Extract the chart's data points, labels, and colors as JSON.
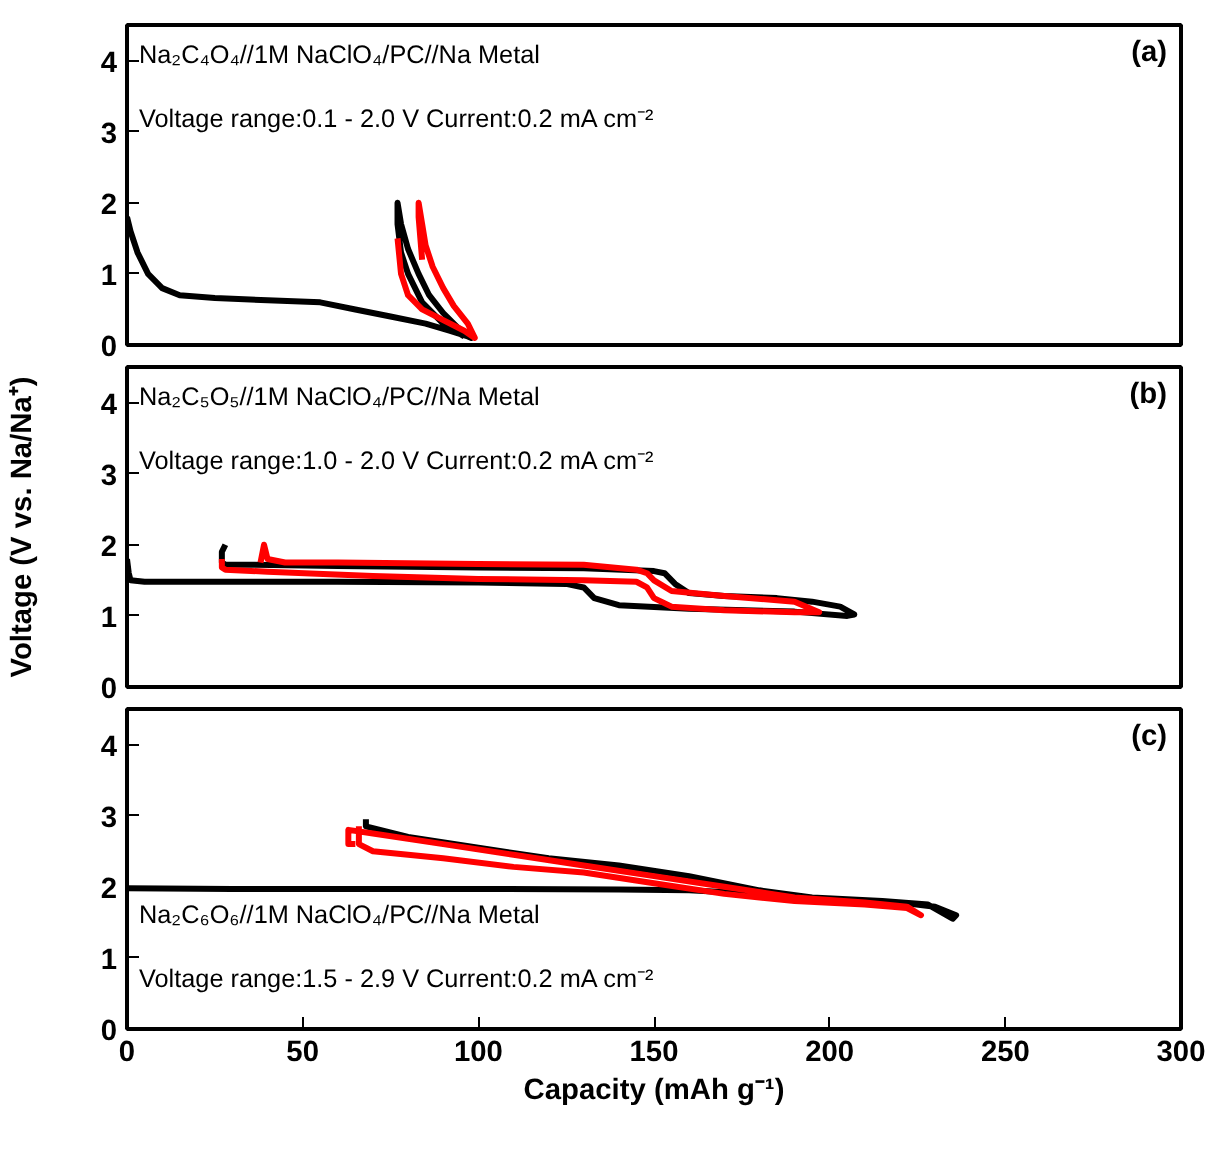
{
  "chart_data": [
    {
      "type": "line",
      "xlim": [
        0,
        300
      ],
      "ylim": [
        0,
        4.5
      ],
      "xticks": [
        0,
        50,
        100,
        150,
        200,
        250,
        300
      ],
      "yticks": [
        0,
        1,
        2,
        3,
        4
      ],
      "tick_labels": "y",
      "grid": false,
      "annotations": [
        "Na₂C₄O₄//1M NaClO₄/PC//Na Metal",
        "Voltage range:0.1 - 2.0 V Current:0.2 mA cm⁻²",
        "(a)"
      ],
      "series": [
        {
          "color": "#000000",
          "x": [
            0,
            1,
            3,
            6,
            10,
            15,
            25,
            40,
            55,
            65,
            75,
            85,
            92,
            97,
            98,
            94,
            90,
            86,
            83,
            80,
            78,
            77,
            77,
            78,
            80,
            84,
            90,
            96
          ],
          "values": [
            1.8,
            1.6,
            1.3,
            1.0,
            0.8,
            0.7,
            0.66,
            0.63,
            0.6,
            0.5,
            0.4,
            0.3,
            0.2,
            0.12,
            0.1,
            0.25,
            0.45,
            0.7,
            1.0,
            1.35,
            1.7,
            2.0,
            1.7,
            1.3,
            1.0,
            0.6,
            0.3,
            0.12
          ]
        },
        {
          "color": "#ff0000",
          "x": [
            77,
            78,
            80,
            84,
            90,
            96,
            99,
            97,
            93,
            90,
            87,
            85,
            84,
            83,
            83,
            83.5,
            84
          ],
          "values": [
            1.5,
            1.0,
            0.7,
            0.5,
            0.35,
            0.2,
            0.1,
            0.3,
            0.55,
            0.8,
            1.1,
            1.4,
            1.7,
            2.0,
            1.8,
            1.5,
            1.2
          ]
        }
      ]
    },
    {
      "type": "line",
      "xlim": [
        0,
        300
      ],
      "ylim": [
        0,
        4.5
      ],
      "xticks": [
        0,
        50,
        100,
        150,
        200,
        250,
        300
      ],
      "yticks": [
        0,
        1,
        2,
        3,
        4
      ],
      "tick_labels": "y",
      "grid": false,
      "ylabel": "Voltage (V vs. Na/Na⁺)",
      "annotations": [
        "Na₂C₅O₅//1M NaClO₄/PC//Na Metal",
        "Voltage range:1.0 - 2.0 V Current:0.2 mA cm⁻²",
        "(b)"
      ],
      "series": [
        {
          "color": "#000000",
          "x": [
            0,
            0.5,
            1,
            5,
            20,
            60,
            100,
            125,
            130,
            133,
            140,
            160,
            190,
            205,
            207,
            203,
            195,
            185,
            170,
            160,
            156,
            153,
            150,
            130,
            100,
            60,
            35,
            28,
            27,
            27,
            28
          ],
          "values": [
            1.8,
            1.6,
            1.5,
            1.48,
            1.48,
            1.48,
            1.47,
            1.45,
            1.4,
            1.25,
            1.15,
            1.1,
            1.06,
            1.0,
            1.02,
            1.13,
            1.2,
            1.25,
            1.28,
            1.32,
            1.45,
            1.6,
            1.63,
            1.67,
            1.68,
            1.7,
            1.72,
            1.72,
            1.75,
            1.9,
            2.0
          ]
        },
        {
          "color": "#ff0000",
          "x": [
            38,
            39,
            40,
            45,
            60,
            100,
            130,
            145,
            148,
            150,
            155,
            170,
            190,
            197,
            190,
            170,
            155,
            150,
            148,
            145,
            130,
            100,
            70,
            40,
            28,
            27,
            27
          ],
          "values": [
            1.75,
            2.0,
            1.8,
            1.75,
            1.75,
            1.73,
            1.72,
            1.65,
            1.6,
            1.5,
            1.35,
            1.28,
            1.2,
            1.05,
            1.05,
            1.08,
            1.13,
            1.25,
            1.4,
            1.48,
            1.5,
            1.52,
            1.56,
            1.62,
            1.65,
            1.68,
            1.8
          ]
        }
      ]
    },
    {
      "type": "line",
      "xlim": [
        0,
        300
      ],
      "ylim": [
        0,
        4.5
      ],
      "xticks": [
        0,
        50,
        100,
        150,
        200,
        250,
        300
      ],
      "yticks": [
        0,
        1,
        2,
        3,
        4
      ],
      "grid": false,
      "xlabel": "Capacity (mAh g⁻¹)",
      "annotations": [
        "Na₂C₆O₆//1M NaClO₄/PC//Na Metal",
        "Voltage range:1.5 - 2.9 V Current:0.2 mA cm⁻²",
        "(c)"
      ],
      "series": [
        {
          "color": "#000000",
          "x": [
            0,
            30,
            60,
            100,
            140,
            160,
            180,
            200,
            220,
            230,
            236,
            235,
            228,
            215,
            195,
            180,
            160,
            140,
            120,
            100,
            80,
            68,
            68
          ],
          "values": [
            1.98,
            1.97,
            1.97,
            1.97,
            1.96,
            1.95,
            1.9,
            1.83,
            1.78,
            1.72,
            1.6,
            1.55,
            1.75,
            1.8,
            1.85,
            1.95,
            2.15,
            2.3,
            2.4,
            2.55,
            2.7,
            2.85,
            2.95
          ]
        },
        {
          "color": "#ff0000",
          "x": [
            66,
            66,
            70,
            90,
            110,
            130,
            150,
            170,
            190,
            210,
            222,
            226,
            222,
            210,
            190,
            170,
            150,
            130,
            110,
            90,
            70,
            63,
            63,
            65
          ],
          "values": [
            2.85,
            2.6,
            2.5,
            2.4,
            2.28,
            2.2,
            2.05,
            1.9,
            1.8,
            1.75,
            1.7,
            1.6,
            1.72,
            1.78,
            1.85,
            2.0,
            2.15,
            2.3,
            2.45,
            2.6,
            2.75,
            2.8,
            2.6,
            2.6
          ]
        }
      ]
    }
  ]
}
